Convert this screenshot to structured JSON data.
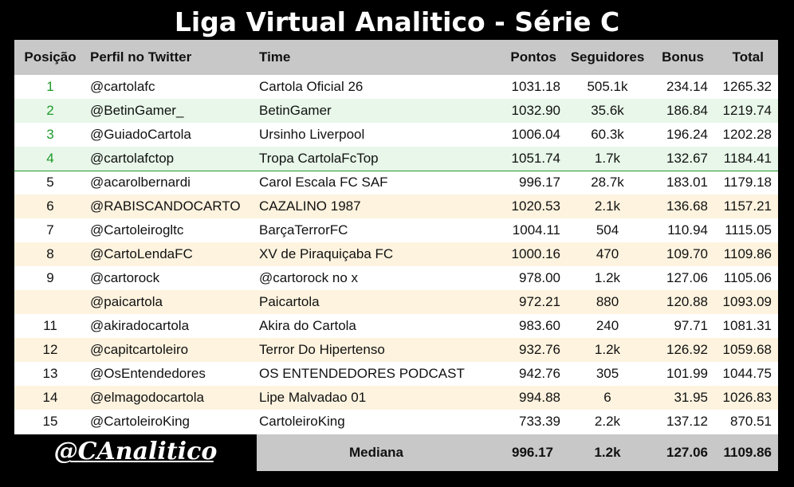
{
  "title": "Liga Virtual Analitico - Série C",
  "headers": {
    "position": "Posição",
    "profile": "Perfil no Twitter",
    "team": "Time",
    "points": "Pontos",
    "followers": "Seguidores",
    "bonus": "Bonus",
    "total": "Total"
  },
  "rows": [
    {
      "pos": "1",
      "profile": "@cartolafc",
      "team": "Cartola Oficial 26",
      "points": "1031.18",
      "followers": "505.1k",
      "bonus": "234.14",
      "total": "1265.32"
    },
    {
      "pos": "2",
      "profile": "@BetinGamer_",
      "team": "BetinGamer",
      "points": "1032.90",
      "followers": "35.6k",
      "bonus": "186.84",
      "total": "1219.74"
    },
    {
      "pos": "3",
      "profile": "@GuiadoCartola",
      "team": "Ursinho Liverpool",
      "points": "1006.04",
      "followers": "60.3k",
      "bonus": "196.24",
      "total": "1202.28"
    },
    {
      "pos": "4",
      "profile": "@cartolafctop",
      "team": "Tropa CartolaFcTop",
      "points": "1051.74",
      "followers": "1.7k",
      "bonus": "132.67",
      "total": "1184.41"
    },
    {
      "pos": "5",
      "profile": "@acarolbernardi",
      "team": "Carol Escala FC SAF",
      "points": "996.17",
      "followers": "28.7k",
      "bonus": "183.01",
      "total": "1179.18"
    },
    {
      "pos": "6",
      "profile": "@RABISCANDOCARTO",
      "team": "CAZALINO 1987",
      "points": "1020.53",
      "followers": "2.1k",
      "bonus": "136.68",
      "total": "1157.21"
    },
    {
      "pos": "7",
      "profile": "@Cartoleirogltc",
      "team": "BarçaTerrorFC",
      "points": "1004.11",
      "followers": "504",
      "bonus": "110.94",
      "total": "1115.05"
    },
    {
      "pos": "8",
      "profile": "@CartoLendaFC",
      "team": "XV de Piraquiçaba FC",
      "points": "1000.16",
      "followers": "470",
      "bonus": "109.70",
      "total": "1109.86"
    },
    {
      "pos": "9",
      "profile": "@cartorock",
      "team": "@cartorock no x",
      "points": "978.00",
      "followers": "1.2k",
      "bonus": "127.06",
      "total": "1105.06"
    },
    {
      "pos": "",
      "profile": "@paicartola",
      "team": "Paicartola",
      "points": "972.21",
      "followers": "880",
      "bonus": "120.88",
      "total": "1093.09"
    },
    {
      "pos": "11",
      "profile": "@akiradocartola",
      "team": "Akira do Cartola",
      "points": "983.60",
      "followers": "240",
      "bonus": "97.71",
      "total": "1081.31"
    },
    {
      "pos": "12",
      "profile": "@capitcartoleiro",
      "team": "Terror Do Hipertenso",
      "points": "932.76",
      "followers": "1.2k",
      "bonus": "126.92",
      "total": "1059.68"
    },
    {
      "pos": "13",
      "profile": "@OsEntendedores",
      "team": "OS ENTENDEDORES PODCAST",
      "points": "942.76",
      "followers": "305",
      "bonus": "101.99",
      "total": "1044.75"
    },
    {
      "pos": "14",
      "profile": "@elmagodocartola",
      "team": "Lipe Malvadao 01",
      "points": "994.88",
      "followers": "6",
      "bonus": "31.95",
      "total": "1026.83"
    },
    {
      "pos": "15",
      "profile": "@CartoleiroKing",
      "team": "CartoleiroKing",
      "points": "733.39",
      "followers": "2.2k",
      "bonus": "137.12",
      "total": "870.51"
    }
  ],
  "footer": {
    "logo": "@CAnalitico",
    "median_label": "Mediana",
    "median_points": "996.17",
    "median_followers": "1.2k",
    "median_bonus": "127.06",
    "median_total": "1109.86"
  },
  "colors": {
    "top_position": "#1c9a2a",
    "top_alt_row": "#e8f7e9",
    "rest_alt_row": "#fdf3df",
    "header_bg": "#c8c8c8"
  }
}
